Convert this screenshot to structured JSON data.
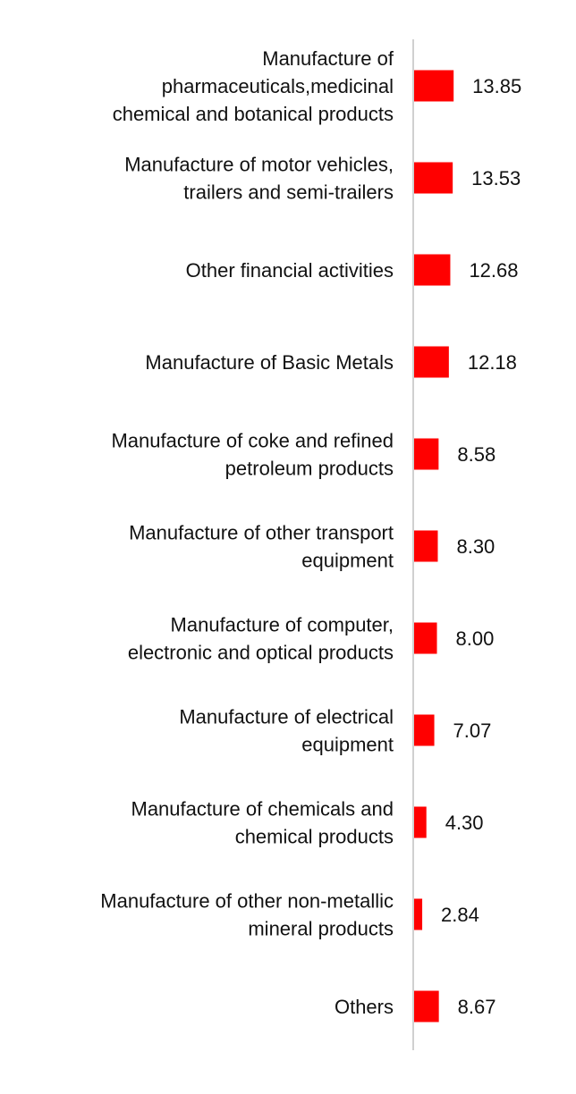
{
  "colors": {
    "bar": "#ff0000",
    "axis": "#d0d0d0",
    "text": "#111111",
    "background": "#ffffff"
  },
  "chart_data": {
    "type": "bar",
    "orientation": "horizontal",
    "title": "",
    "xlabel": "",
    "ylabel": "",
    "xlim": [
      0,
      100
    ],
    "grid": false,
    "legend": "none",
    "categories": [
      [
        "Manufacture of",
        "pharmaceuticals,medicinal",
        "chemical and botanical products"
      ],
      [
        "Manufacture of motor vehicles,",
        "trailers and semi-trailers"
      ],
      [
        "Other financial activities"
      ],
      [
        "Manufacture of Basic Metals"
      ],
      [
        "Manufacture of coke and refined",
        "petroleum products"
      ],
      [
        "Manufacture of other transport",
        "equipment"
      ],
      [
        "Manufacture of computer,",
        "electronic and optical products"
      ],
      [
        "Manufacture of electrical",
        "equipment"
      ],
      [
        "Manufacture of chemicals and",
        "chemical products"
      ],
      [
        "Manufacture of other non-metallic",
        "mineral products"
      ],
      [
        "Others"
      ]
    ],
    "values": [
      13.85,
      13.53,
      12.68,
      12.18,
      8.58,
      8.3,
      8.0,
      7.07,
      4.3,
      2.84,
      8.67
    ],
    "value_labels": [
      "13.85",
      "13.53",
      "12.68",
      "12.18",
      "8.58",
      "8.30",
      "8.00",
      "7.07",
      "4.30",
      "2.84",
      "8.67"
    ]
  }
}
